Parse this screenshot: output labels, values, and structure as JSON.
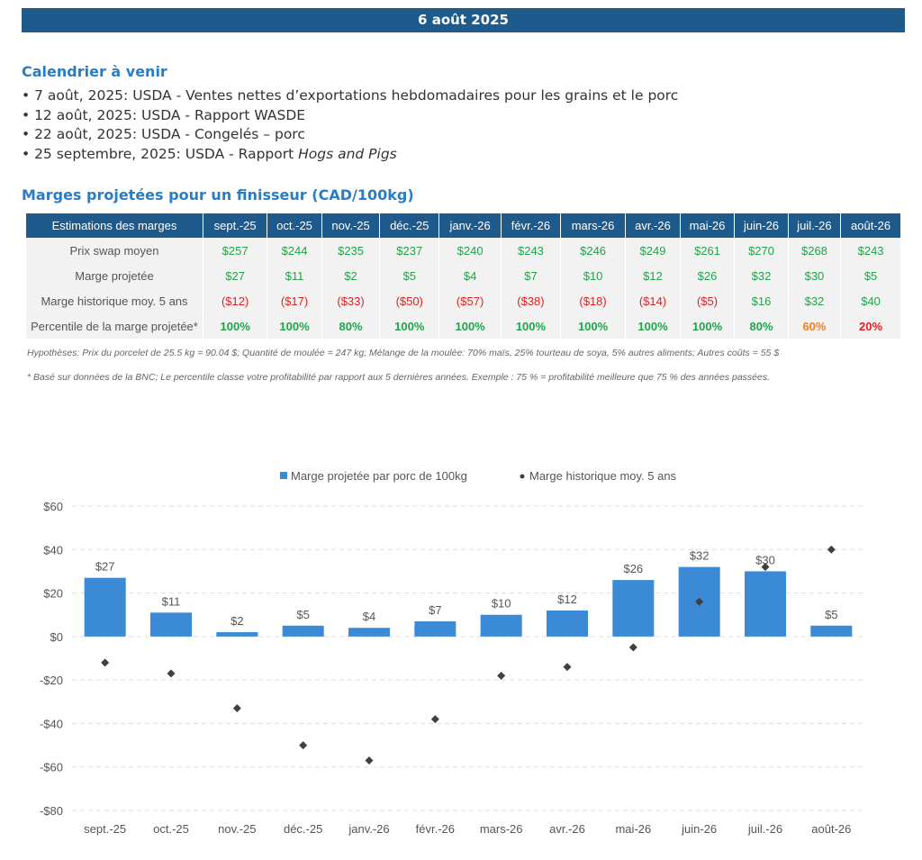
{
  "header": {
    "date": "6 août 2025"
  },
  "calendar": {
    "title": "Calendrier à venir",
    "items": [
      {
        "prefix": "• 7 août, 2025: USDA - Ventes nettes d’exportations hebdomadaires pour les grains et le porc",
        "italic": ""
      },
      {
        "prefix": "• 12 août, 2025: USDA - Rapport WASDE",
        "italic": ""
      },
      {
        "prefix": "• 22 août, 2025: USDA - Congelés – porc",
        "italic": ""
      },
      {
        "prefix": "• 25 septembre, 2025: USDA - Rapport ",
        "italic": "Hogs and Pigs"
      }
    ]
  },
  "margins_table": {
    "title": "Marges projetées pour un finisseur (CAD/100kg)",
    "header_label": "Estimations des marges",
    "months": [
      "sept.-25",
      "oct.-25",
      "nov.-25",
      "déc.-25",
      "janv.-26",
      "févr.-26",
      "mars-26",
      "avr.-26",
      "mai-26",
      "juin-26",
      "juil.-26",
      "août-26"
    ],
    "rows": [
      {
        "label": "Prix swap moyen",
        "values": [
          "$257",
          "$244",
          "$235",
          "$237",
          "$240",
          "$243",
          "$246",
          "$249",
          "$261",
          "$270",
          "$268",
          "$243"
        ],
        "classes": [
          "pos",
          "pos",
          "pos",
          "pos",
          "pos",
          "pos",
          "pos",
          "pos",
          "pos",
          "pos",
          "pos",
          "pos"
        ]
      },
      {
        "label": "Marge projetée",
        "values": [
          "$27",
          "$11",
          "$2",
          "$5",
          "$4",
          "$7",
          "$10",
          "$12",
          "$26",
          "$32",
          "$30",
          "$5"
        ],
        "classes": [
          "pos",
          "pos",
          "pos",
          "pos",
          "pos",
          "pos",
          "pos",
          "pos",
          "pos",
          "pos",
          "pos",
          "pos"
        ]
      },
      {
        "label": "Marge historique moy. 5 ans",
        "values": [
          "($12)",
          "($17)",
          "($33)",
          "($50)",
          "($57)",
          "($38)",
          "($18)",
          "($14)",
          "($5)",
          "$16",
          "$32",
          "$40"
        ],
        "classes": [
          "neg",
          "neg",
          "neg",
          "neg",
          "neg",
          "neg",
          "neg",
          "neg",
          "neg",
          "pos",
          "pos",
          "pos"
        ]
      },
      {
        "label": "Percentile de la marge projetée*",
        "values": [
          "100%",
          "100%",
          "80%",
          "100%",
          "100%",
          "100%",
          "100%",
          "100%",
          "100%",
          "80%",
          "60%",
          "20%"
        ],
        "classes": [
          "pct-green",
          "pct-green",
          "pct-green",
          "pct-green",
          "pct-green",
          "pct-green",
          "pct-green",
          "pct-green",
          "pct-green",
          "pct-green",
          "pct-orange",
          "pct-red"
        ]
      }
    ],
    "note_hypotheses": "Hypothèses: Prix du porcelet de 25.5 kg = 90.04 $; Quantité de moulée = 247 kg; Mélange de la moulée: 70% maïs, 25% tourteau de soya, 5% autres aliments; Autres coûts = 55 $",
    "note_bnc": "* Basé sur données de la BNC; Le percentile classe votre profitabilité par rapport aux 5 dernières années. Exemple : 75 % = profitabilité meilleure que 75 % des années passées."
  },
  "chart_data": {
    "type": "bar",
    "categories": [
      "sept.-25",
      "oct.-25",
      "nov.-25",
      "déc.-25",
      "janv.-26",
      "févr.-26",
      "mars-26",
      "avr.-26",
      "mai-26",
      "juin-26",
      "juil.-26",
      "août-26"
    ],
    "series": [
      {
        "name": "Marge projetée par porc de 100kg",
        "type": "bar",
        "values": [
          27,
          11,
          2,
          5,
          4,
          7,
          10,
          12,
          26,
          32,
          30,
          5
        ],
        "labels": [
          "$27",
          "$11",
          "$2",
          "$5",
          "$4",
          "$7",
          "$10",
          "$12",
          "$26",
          "$32",
          "$30",
          "$5"
        ],
        "color": "#3a8ad6"
      },
      {
        "name": "Marge historique moy. 5 ans",
        "type": "scatter",
        "values": [
          -12,
          -17,
          -33,
          -50,
          -57,
          -38,
          -18,
          -14,
          -5,
          16,
          32,
          40
        ],
        "color": "#404040"
      }
    ],
    "y_ticks": [
      60,
      40,
      20,
      0,
      -20,
      -40,
      -60,
      -80
    ],
    "y_tick_labels": [
      "$60",
      "$40",
      "$20",
      "$0",
      "-$20",
      "-$40",
      "-$60",
      "-$80"
    ],
    "ylim": [
      -80,
      60
    ],
    "legend": "top-center",
    "grid": "horizontal-dashed"
  }
}
